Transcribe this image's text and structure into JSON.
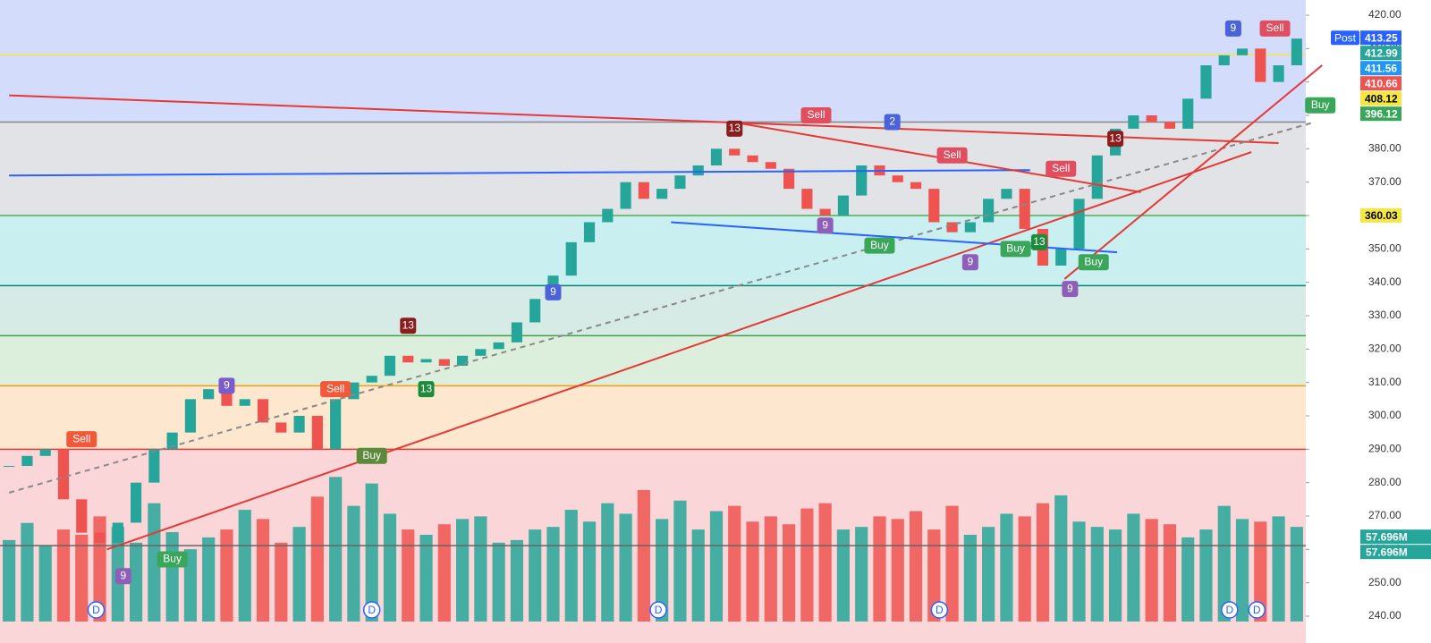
{
  "chart_data": {
    "type": "candlestick",
    "close": [
      285,
      288,
      290,
      275,
      265,
      262,
      268,
      280,
      290,
      295,
      305,
      308,
      303,
      305,
      298,
      295,
      300,
      290,
      305,
      310,
      312,
      318,
      316,
      317,
      315,
      318,
      320,
      322,
      328,
      335,
      342,
      352,
      358,
      362,
      370,
      365,
      368,
      372,
      375,
      380,
      378,
      376,
      374,
      368,
      362,
      360,
      366,
      375,
      372,
      370,
      368,
      358,
      355,
      358,
      365,
      368,
      356,
      345,
      350,
      365,
      378,
      386,
      390,
      388,
      386,
      395,
      405,
      408,
      410,
      400,
      405,
      413
    ],
    "volume": [
      62,
      75,
      58,
      70,
      66,
      80,
      72,
      60,
      90,
      68,
      55,
      64,
      70,
      85,
      78,
      60,
      72,
      95,
      110,
      88,
      105,
      82,
      70,
      66,
      74,
      78,
      80,
      60,
      62,
      70,
      72,
      85,
      76,
      90,
      82,
      100,
      78,
      92,
      70,
      84,
      88,
      76,
      80,
      74,
      86,
      90,
      70,
      72,
      80,
      78,
      84,
      70,
      88,
      66,
      72,
      82,
      80,
      90,
      96,
      76,
      72,
      70,
      82,
      78,
      74,
      64,
      70,
      88,
      78,
      76,
      80,
      72
    ],
    "up_color": "#26a69a",
    "down_color": "#ef5350",
    "ylim": [
      240,
      420
    ],
    "yticks": [
      {
        "value": 420,
        "label": "420.00"
      },
      {
        "value": 410,
        "label": "410.00"
      },
      {
        "value": 400,
        "label": "400.00"
      },
      {
        "value": 390,
        "label": "390.00"
      },
      {
        "value": 380,
        "label": "380.00"
      },
      {
        "value": 370,
        "label": "370.00"
      },
      {
        "value": 360,
        "label": "360.00"
      },
      {
        "value": 350,
        "label": "350.00"
      },
      {
        "value": 340,
        "label": "340.00"
      },
      {
        "value": 330,
        "label": "330.00"
      },
      {
        "value": 320,
        "label": "320.00"
      },
      {
        "value": 310,
        "label": "310.00"
      },
      {
        "value": 300,
        "label": "300.00"
      },
      {
        "value": 290,
        "label": "290.00"
      },
      {
        "value": 280,
        "label": "280.00"
      },
      {
        "value": 270,
        "label": "270.00"
      },
      {
        "value": 260,
        "label": "260.00"
      },
      {
        "value": 250,
        "label": "250.00"
      },
      {
        "value": 240,
        "label": "240.00"
      }
    ],
    "bands": [
      {
        "from": 420,
        "to": 388,
        "color": "#d3dcfb"
      },
      {
        "from": 388,
        "to": 360,
        "color": "#e2e3e6"
      },
      {
        "from": 360,
        "to": 339,
        "color": "#c9eff0"
      },
      {
        "from": 339,
        "to": 324,
        "color": "#d6ebe5"
      },
      {
        "from": 324,
        "to": 309,
        "color": "#dcefdc"
      },
      {
        "from": 309,
        "to": 290,
        "color": "#fde8cf"
      },
      {
        "from": 290,
        "to": 240,
        "color": "#fbd6d8"
      }
    ],
    "levels": [
      {
        "value": 388,
        "color": "#888888"
      },
      {
        "value": 360,
        "color": "#4caf50"
      },
      {
        "value": 339,
        "color": "#00897b"
      },
      {
        "value": 324,
        "color": "#43a047"
      },
      {
        "value": 309,
        "color": "#f39c12"
      },
      {
        "value": 290,
        "color": "#e53935"
      },
      {
        "value": 408.12,
        "color": "#f5e642"
      }
    ],
    "trendlines": [
      {
        "points": [
          0,
          396,
          70,
          381.7
        ],
        "color": "#e53935"
      },
      {
        "points": [
          5.4,
          260,
          68.5,
          379
        ],
        "color": "#e53935"
      },
      {
        "points": [
          0,
          372,
          56.3,
          373.6
        ],
        "color": "#2962ff"
      },
      {
        "points": [
          36.5,
          358,
          61.1,
          349
        ],
        "color": "#2962ff"
      },
      {
        "points": [
          0,
          277,
          72,
          388
        ],
        "color": "#888888",
        "dashed": true
      },
      {
        "points": [
          58.2,
          341,
          72.4,
          405
        ],
        "color": "#e53935"
      },
      {
        "points": [
          39.9,
          388,
          62.4,
          367
        ],
        "color": "#e53935"
      }
    ],
    "markers": [
      {
        "label": "Sell",
        "x": 4,
        "y": 293,
        "color": "#f05a3a"
      },
      {
        "label": "Sell",
        "x": 18,
        "y": 308,
        "color": "#f05a3a"
      },
      {
        "label": "Buy",
        "x": 20,
        "y": 288,
        "color": "#5b8a3a"
      },
      {
        "label": "9",
        "x": 12,
        "y": 309,
        "color": "#7a5ccc"
      },
      {
        "label": "13",
        "x": 22,
        "y": 327,
        "color": "#8b1d1d"
      },
      {
        "label": "13",
        "x": 23,
        "y": 308,
        "color": "#1e8a3c"
      },
      {
        "label": "9",
        "x": 30,
        "y": 337,
        "color": "#4a63d9"
      },
      {
        "label": "13",
        "x": 40,
        "y": 386,
        "color": "#8b1d1d"
      },
      {
        "label": "Sell",
        "x": 44.5,
        "y": 390,
        "color": "#e04f5f"
      },
      {
        "label": "9",
        "x": 45,
        "y": 357,
        "color": "#8e5fb8"
      },
      {
        "label": "2",
        "x": 48.7,
        "y": 388,
        "color": "#4a63d9"
      },
      {
        "label": "Buy",
        "x": 48,
        "y": 351,
        "color": "#3aa65a"
      },
      {
        "label": "Sell",
        "x": 52,
        "y": 378,
        "color": "#e04f5f"
      },
      {
        "label": "Buy",
        "x": 55.5,
        "y": 350,
        "color": "#3aa65a"
      },
      {
        "label": "9",
        "x": 53,
        "y": 346,
        "color": "#8e5fb8"
      },
      {
        "label": "13",
        "x": 56.8,
        "y": 352,
        "color": "#1e8a3c"
      },
      {
        "label": "Sell",
        "x": 58,
        "y": 374,
        "color": "#e04f5f"
      },
      {
        "label": "Buy",
        "x": 59.8,
        "y": 346,
        "color": "#3aa65a"
      },
      {
        "label": "9",
        "x": 58.5,
        "y": 338,
        "color": "#8e5fb8"
      },
      {
        "label": "13",
        "x": 61,
        "y": 383,
        "color": "#8b1d1d"
      },
      {
        "label": "9",
        "x": 67.5,
        "y": 416,
        "color": "#4a63d9"
      },
      {
        "label": "Sell",
        "x": 69.8,
        "y": 416,
        "color": "#e04f5f"
      },
      {
        "label": "Buy",
        "x": 72.3,
        "y": 393,
        "color": "#3aa65a"
      },
      {
        "label": "9",
        "x": 6.3,
        "y": 252,
        "color": "#8e5fb8"
      },
      {
        "label": "Buy",
        "x": 9,
        "y": 257,
        "color": "#3aa65a"
      }
    ],
    "dividends": [
      {
        "label": "D",
        "x": 4.8
      },
      {
        "label": "D",
        "x": 20
      },
      {
        "label": "D",
        "x": 35.8
      },
      {
        "label": "D",
        "x": 51.3
      },
      {
        "label": "D",
        "x": 67.3
      },
      {
        "label": "D",
        "x": 68.8
      }
    ],
    "post_label": "Post",
    "price_labels": [
      {
        "value": 413.25,
        "color": "#2962ff"
      },
      {
        "value": 412.99,
        "color": "#26a69a"
      },
      {
        "value": 411.56,
        "color": "#2196f3"
      },
      {
        "value": 410.66,
        "color": "#ef5350"
      },
      {
        "value": 408.12,
        "color": "#f5e642"
      },
      {
        "value": 396.12,
        "color": "#3aa65a"
      },
      {
        "value": 360.03,
        "color": "#f5e642"
      }
    ],
    "volume_labels": [
      {
        "value": 57.696,
        "label": "57.696M",
        "color": "#26a69a"
      },
      {
        "value": 57.696,
        "label": "57.696M",
        "color": "#26a69a"
      }
    ]
  }
}
